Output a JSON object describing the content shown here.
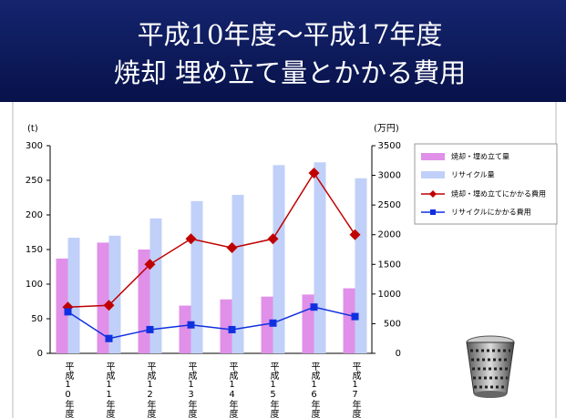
{
  "chart_data": {
    "type": "bar_line",
    "title": "平成10年度～平成17年度",
    "subtitle": "焼却 埋め立て量とかかる費用",
    "ylabel": "(t)",
    "y2label": "(万円)",
    "categories": [
      "平成10年度",
      "平成11年度",
      "平成12年度",
      "平成13年度",
      "平成14年度",
      "平成15年度",
      "平成16年度",
      "平成17年度"
    ],
    "series": [
      {
        "name": "焼却・埋め立て量",
        "color": "#e090e8",
        "kind": "bar",
        "axis": "y",
        "values": [
          137,
          160,
          150,
          69,
          78,
          82,
          85,
          94
        ]
      },
      {
        "name": "リサイクル量",
        "color": "#c0d0f8",
        "kind": "bar",
        "axis": "y",
        "values": [
          167,
          170,
          195,
          220,
          229,
          272,
          276,
          253
        ]
      },
      {
        "name": "焼却・埋め立てにかかる費用",
        "color": "#c00000",
        "kind": "line",
        "marker": "diamond",
        "axis": "y2",
        "values": [
          780,
          810,
          1500,
          1930,
          1780,
          1930,
          3040,
          2000
        ]
      },
      {
        "name": "リサイクルにかかる費用",
        "color": "#1030e0",
        "kind": "line",
        "marker": "square",
        "axis": "y2",
        "values": [
          700,
          250,
          400,
          480,
          400,
          510,
          780,
          620
        ]
      }
    ],
    "ylim": [
      0,
      300
    ],
    "yticks": [
      0,
      50,
      100,
      150,
      200,
      250,
      300
    ],
    "y2lim": [
      0,
      3500
    ],
    "y2ticks": [
      0,
      500,
      1000,
      1500,
      2000,
      2500,
      3000,
      3500
    ]
  }
}
